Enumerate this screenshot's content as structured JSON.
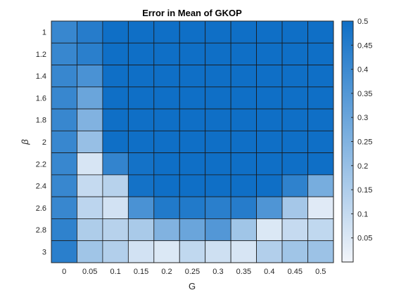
{
  "chart_data": {
    "type": "heatmap",
    "title": "Error in Mean of GKOP",
    "xlabel": "G",
    "ylabel": "β",
    "x": [
      "0",
      "0.05",
      "0.1",
      "0.15",
      "0.2",
      "0.25",
      "0.3",
      "0.35",
      "0.4",
      "0.45",
      "0.5"
    ],
    "y": [
      "1",
      "1.2",
      "1.4",
      "1.6",
      "1.8",
      "2",
      "2.2",
      "2.4",
      "2.6",
      "2.8",
      "3"
    ],
    "values": [
      [
        0.41,
        0.45,
        0.5,
        0.5,
        0.5,
        0.5,
        0.5,
        0.5,
        0.5,
        0.5,
        0.5
      ],
      [
        0.41,
        0.44,
        0.5,
        0.5,
        0.5,
        0.5,
        0.5,
        0.5,
        0.5,
        0.5,
        0.5
      ],
      [
        0.41,
        0.37,
        0.5,
        0.5,
        0.5,
        0.5,
        0.5,
        0.5,
        0.5,
        0.5,
        0.5
      ],
      [
        0.41,
        0.3,
        0.5,
        0.5,
        0.5,
        0.5,
        0.5,
        0.5,
        0.5,
        0.5,
        0.5
      ],
      [
        0.41,
        0.25,
        0.5,
        0.5,
        0.5,
        0.5,
        0.5,
        0.5,
        0.5,
        0.5,
        0.5
      ],
      [
        0.41,
        0.2,
        0.5,
        0.5,
        0.5,
        0.5,
        0.5,
        0.5,
        0.5,
        0.5,
        0.5
      ],
      [
        0.41,
        0.06,
        0.42,
        0.49,
        0.5,
        0.5,
        0.5,
        0.5,
        0.5,
        0.5,
        0.5
      ],
      [
        0.41,
        0.1,
        0.13,
        0.49,
        0.5,
        0.5,
        0.5,
        0.5,
        0.5,
        0.43,
        0.27
      ],
      [
        0.41,
        0.12,
        0.07,
        0.37,
        0.46,
        0.46,
        0.44,
        0.45,
        0.36,
        0.17,
        0.04
      ],
      [
        0.43,
        0.15,
        0.13,
        0.16,
        0.25,
        0.3,
        0.35,
        0.18,
        0.05,
        0.1,
        0.11
      ],
      [
        0.44,
        0.18,
        0.14,
        0.07,
        0.05,
        0.11,
        0.08,
        0.06,
        0.14,
        0.18,
        0.19
      ]
    ],
    "colorbar": {
      "ticks": [
        "0.05",
        "0.1",
        "0.15",
        "0.2",
        "0.25",
        "0.3",
        "0.35",
        "0.4",
        "0.45",
        "0.5"
      ],
      "range": [
        0,
        0.5
      ],
      "color_low": "#f2f5fa",
      "color_high": "#0f6fc6"
    },
    "grid": false,
    "legend": "colorbar-right"
  }
}
